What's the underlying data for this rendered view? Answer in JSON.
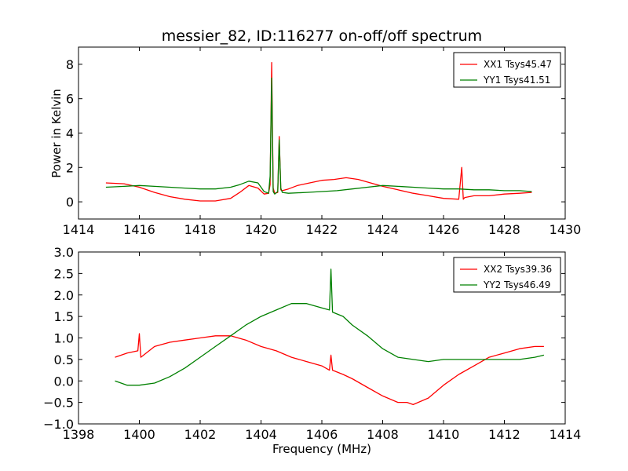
{
  "figure": {
    "title": "messier_82, ID:116277 on-off/off spectrum",
    "ylabel": "Power in Kelvin",
    "xlabel": "Frequency (MHz)"
  },
  "chart_data": [
    {
      "type": "line",
      "panel": "top",
      "title": "messier_82, ID:116277 on-off/off spectrum",
      "xlabel": "",
      "ylabel": "Power in Kelvin",
      "xlim": [
        1414,
        1430
      ],
      "ylim": [
        -1,
        9
      ],
      "xticks": [
        1414,
        1416,
        1418,
        1420,
        1422,
        1424,
        1426,
        1428,
        1430
      ],
      "yticks": [
        0,
        2,
        4,
        6,
        8
      ],
      "legend_position": "top-right",
      "grid": false,
      "series": [
        {
          "name": "XX1 Tsys45.47",
          "color": "#ff0000",
          "x": [
            1414.9,
            1415.5,
            1416.0,
            1416.5,
            1417.0,
            1417.5,
            1418.0,
            1418.5,
            1419.0,
            1419.3,
            1419.6,
            1419.9,
            1420.1,
            1420.25,
            1420.3,
            1420.35,
            1420.4,
            1420.45,
            1420.55,
            1420.6,
            1420.65,
            1420.7,
            1420.9,
            1421.2,
            1421.6,
            1422.0,
            1422.4,
            1422.8,
            1423.2,
            1423.6,
            1424.0,
            1424.5,
            1425.0,
            1425.5,
            1426.0,
            1426.5,
            1426.6,
            1426.65,
            1426.7,
            1427.0,
            1427.5,
            1428.0,
            1428.5,
            1428.9
          ],
          "values": [
            1.1,
            1.05,
            0.85,
            0.55,
            0.3,
            0.15,
            0.05,
            0.05,
            0.2,
            0.55,
            0.95,
            0.8,
            0.45,
            0.5,
            1.0,
            8.1,
            0.8,
            0.5,
            0.55,
            3.8,
            0.7,
            0.65,
            0.75,
            0.95,
            1.1,
            1.25,
            1.3,
            1.4,
            1.3,
            1.1,
            0.9,
            0.7,
            0.5,
            0.35,
            0.2,
            0.15,
            2.0,
            0.15,
            0.25,
            0.35,
            0.35,
            0.45,
            0.5,
            0.55
          ]
        },
        {
          "name": "YY1 Tsys41.51",
          "color": "#008000",
          "x": [
            1414.9,
            1415.5,
            1416.0,
            1416.5,
            1417.0,
            1417.5,
            1418.0,
            1418.5,
            1419.0,
            1419.3,
            1419.6,
            1419.9,
            1420.1,
            1420.25,
            1420.3,
            1420.35,
            1420.4,
            1420.45,
            1420.55,
            1420.6,
            1420.65,
            1420.7,
            1420.9,
            1421.5,
            1422.0,
            1422.5,
            1423.0,
            1423.5,
            1424.0,
            1424.5,
            1425.0,
            1425.5,
            1426.0,
            1426.5,
            1427.0,
            1427.5,
            1428.0,
            1428.5,
            1428.9
          ],
          "values": [
            0.85,
            0.9,
            0.95,
            0.9,
            0.85,
            0.8,
            0.75,
            0.75,
            0.85,
            1.0,
            1.2,
            1.1,
            0.6,
            0.5,
            1.5,
            7.2,
            0.6,
            0.45,
            0.6,
            3.6,
            0.8,
            0.55,
            0.5,
            0.55,
            0.6,
            0.65,
            0.75,
            0.85,
            0.95,
            0.9,
            0.85,
            0.8,
            0.75,
            0.75,
            0.7,
            0.7,
            0.65,
            0.65,
            0.6
          ]
        }
      ]
    },
    {
      "type": "line",
      "panel": "bottom",
      "title": "",
      "xlabel": "Frequency (MHz)",
      "ylabel": "",
      "xlim": [
        1398,
        1414
      ],
      "ylim": [
        -1.0,
        3.0
      ],
      "xticks": [
        1398,
        1400,
        1402,
        1404,
        1406,
        1408,
        1410,
        1412,
        1414
      ],
      "yticks": [
        -1.0,
        -0.5,
        0.0,
        0.5,
        1.0,
        1.5,
        2.0,
        2.5,
        3.0
      ],
      "ytick_labels": [
        "−1.0",
        "−0.5",
        "0.0",
        "0.5",
        "1.0",
        "1.5",
        "2.0",
        "2.5",
        "3.0"
      ],
      "legend_position": "top-right",
      "grid": false,
      "series": [
        {
          "name": "XX2 Tsys39.36",
          "color": "#ff0000",
          "x": [
            1399.2,
            1399.6,
            1399.95,
            1400.0,
            1400.05,
            1400.5,
            1401.0,
            1401.5,
            1402.0,
            1402.5,
            1403.0,
            1403.5,
            1404.0,
            1404.5,
            1405.0,
            1405.5,
            1406.0,
            1406.25,
            1406.3,
            1406.35,
            1406.7,
            1407.0,
            1407.5,
            1408.0,
            1408.5,
            1408.8,
            1409.0,
            1409.5,
            1410.0,
            1410.5,
            1411.0,
            1411.5,
            1412.0,
            1412.5,
            1413.0,
            1413.3
          ],
          "values": [
            0.55,
            0.65,
            0.7,
            1.1,
            0.55,
            0.8,
            0.9,
            0.95,
            1.0,
            1.05,
            1.05,
            0.95,
            0.8,
            0.7,
            0.55,
            0.45,
            0.35,
            0.25,
            0.6,
            0.25,
            0.15,
            0.05,
            -0.15,
            -0.35,
            -0.5,
            -0.5,
            -0.55,
            -0.4,
            -0.1,
            0.15,
            0.35,
            0.55,
            0.65,
            0.75,
            0.8,
            0.8
          ]
        },
        {
          "name": "YY2 Tsys46.49",
          "color": "#008000",
          "x": [
            1399.2,
            1399.6,
            1400.0,
            1400.5,
            1401.0,
            1401.5,
            1402.0,
            1402.5,
            1403.0,
            1403.5,
            1404.0,
            1404.5,
            1405.0,
            1405.5,
            1406.0,
            1406.25,
            1406.3,
            1406.35,
            1406.7,
            1407.0,
            1407.5,
            1408.0,
            1408.5,
            1409.0,
            1409.5,
            1410.0,
            1410.5,
            1411.0,
            1411.5,
            1412.0,
            1412.5,
            1413.0,
            1413.3
          ],
          "values": [
            0.0,
            -0.1,
            -0.1,
            -0.05,
            0.1,
            0.3,
            0.55,
            0.8,
            1.05,
            1.3,
            1.5,
            1.65,
            1.8,
            1.8,
            1.7,
            1.65,
            2.6,
            1.6,
            1.5,
            1.3,
            1.05,
            0.75,
            0.55,
            0.5,
            0.45,
            0.5,
            0.5,
            0.5,
            0.5,
            0.5,
            0.5,
            0.55,
            0.6
          ]
        }
      ]
    }
  ]
}
